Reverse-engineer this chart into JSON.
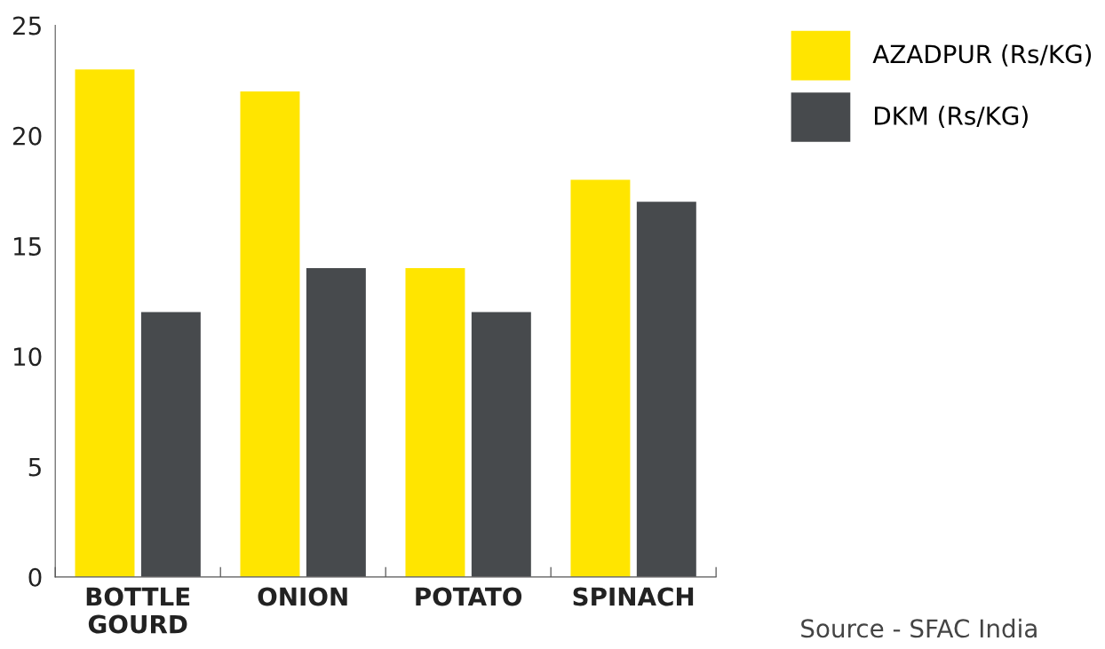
{
  "chart_data": {
    "type": "bar",
    "categories": [
      "BOTTLE\nGOURD",
      "ONION",
      "POTATO",
      "SPINACH"
    ],
    "series": [
      {
        "name": "AZADPUR (Rs/KG)",
        "color": "#ffe500",
        "values": [
          23,
          22,
          14,
          18
        ]
      },
      {
        "name": "DKM (Rs/KG)",
        "color": "#474a4d",
        "values": [
          12,
          14,
          12,
          17
        ]
      }
    ],
    "ylim": [
      0,
      25
    ],
    "yticks": [
      0,
      5,
      10,
      15,
      20,
      25
    ],
    "grid": false,
    "legend": "top right",
    "annotations": [
      "Source - SFAC India"
    ]
  }
}
